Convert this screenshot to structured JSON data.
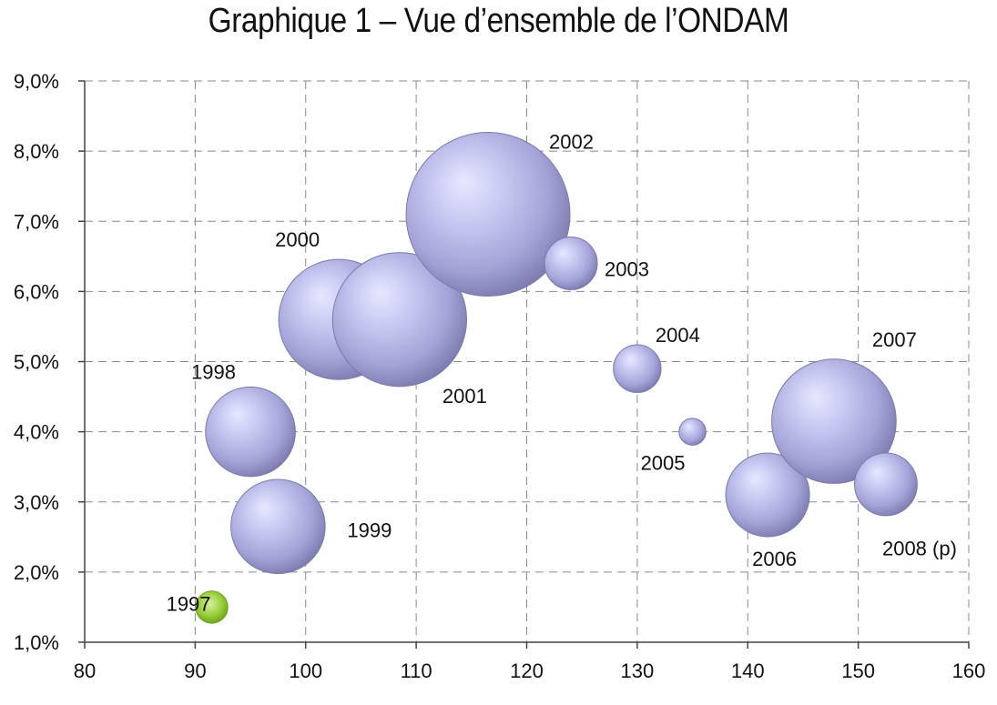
{
  "chart_data": {
    "type": "bubble",
    "title": "Graphique 1 – Vue d’ensemble de l’ONDAM",
    "xlabel": "",
    "ylabel": "",
    "xlim": [
      80,
      160
    ],
    "ylim": [
      1.0,
      9.0
    ],
    "x_ticks": [
      "80",
      "90",
      "100",
      "110",
      "120",
      "130",
      "140",
      "150",
      "160"
    ],
    "y_ticks": [
      "1,0%",
      "2,0%",
      "3,0%",
      "4,0%",
      "5,0%",
      "6,0%",
      "7,0%",
      "8,0%",
      "9,0%"
    ],
    "grid": true,
    "bubble_color": "#9a9ad2",
    "highlight_color": "#8cc63f",
    "points": [
      {
        "label": "1997",
        "x": 91.5,
        "y": 1.5,
        "size": 0.5
      },
      {
        "label": "1998",
        "x": 95.0,
        "y": 4.0,
        "size": 3.9
      },
      {
        "label": "1999",
        "x": 97.5,
        "y": 2.65,
        "size": 4.3
      },
      {
        "label": "2000",
        "x": 103.0,
        "y": 5.6,
        "size": 7.0
      },
      {
        "label": "2001",
        "x": 108.5,
        "y": 5.6,
        "size": 8.7
      },
      {
        "label": "2002",
        "x": 116.5,
        "y": 7.1,
        "size": 13.0
      },
      {
        "label": "2003",
        "x": 124.0,
        "y": 6.4,
        "size": 1.35
      },
      {
        "label": "2004",
        "x": 130.0,
        "y": 4.9,
        "size": 1.1
      },
      {
        "label": "2005",
        "x": 135.0,
        "y": 4.0,
        "size": 0.35
      },
      {
        "label": "2006",
        "x": 141.8,
        "y": 3.1,
        "size": 3.4
      },
      {
        "label": "2007",
        "x": 147.8,
        "y": 4.15,
        "size": 7.5
      },
      {
        "label": "2008 (p)",
        "x": 152.5,
        "y": 3.25,
        "size": 1.9
      }
    ]
  }
}
